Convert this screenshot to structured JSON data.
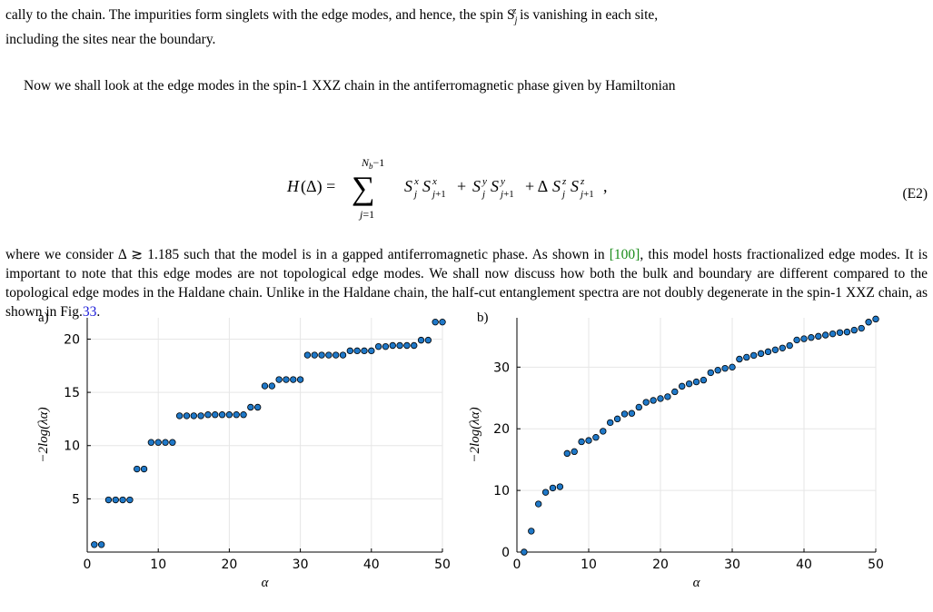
{
  "text": {
    "line1": "cally to the chain. The impurities form singlets with the edge modes, and hence, the spin S",
    "line1_sub": "j",
    "line1_sup": "z",
    "line1_tail": " is vanishing in each site,",
    "line2": "including the sites near the boundary.",
    "para2": "Now we shall look at the edge modes in the spin-1 XXZ chain in the antiferromagnetic phase given by Hamiltonian",
    "para3_a": "where we consider Δ ≳ 1.185 such that the model is in a gapped antiferromagnetic phase. As shown in ",
    "para3_ref": "[100]",
    "para3_b": ", this model hosts fractionalized edge modes. It is important to note that this edge modes are not topological edge modes. We shall now discuss how both the bulk and boundary are different compared to the topological edge modes in the Haldane chain. Unlike in the Haldane chain, the half-cut entanglement spectra are not doubly degenerate in the spin-1 XXZ chain, as shown in Fig.",
    "para3_fig": "33",
    "para3_c": ".",
    "eq_label": "(E2)"
  },
  "colors": {
    "marker_fill": "#1f78c8",
    "marker_edge": "#000000",
    "grid": "#e6e6e6",
    "ref_green": "#1a8c1a",
    "ref_blue": "#1a1ad8"
  },
  "chart_data": [
    {
      "type": "scatter",
      "panel": "a)",
      "xlabel": "α",
      "ylabel": "−2log(λα)",
      "xlim": [
        0,
        50
      ],
      "ylim": [
        0,
        22
      ],
      "xticks": [
        0,
        10,
        20,
        30,
        40,
        50
      ],
      "yticks": [
        5,
        10,
        15,
        20
      ],
      "x": [
        1,
        2,
        3,
        4,
        5,
        6,
        7,
        8,
        9,
        10,
        11,
        12,
        13,
        14,
        15,
        16,
        17,
        18,
        19,
        20,
        21,
        22,
        23,
        24,
        25,
        26,
        27,
        28,
        29,
        30,
        31,
        32,
        33,
        34,
        35,
        36,
        37,
        38,
        39,
        40,
        41,
        42,
        43,
        44,
        45,
        46,
        47,
        48,
        49,
        50
      ],
      "y": [
        0.7,
        0.7,
        4.9,
        4.9,
        4.9,
        4.9,
        7.8,
        7.8,
        10.3,
        10.3,
        10.3,
        10.3,
        12.8,
        12.8,
        12.8,
        12.8,
        12.9,
        12.9,
        12.9,
        12.9,
        12.9,
        12.9,
        13.6,
        13.6,
        15.6,
        15.6,
        16.2,
        16.2,
        16.2,
        16.2,
        18.5,
        18.5,
        18.5,
        18.5,
        18.5,
        18.5,
        18.9,
        18.9,
        18.9,
        18.9,
        19.3,
        19.3,
        19.4,
        19.4,
        19.4,
        19.4,
        19.9,
        19.9,
        21.6,
        21.6
      ]
    },
    {
      "type": "scatter",
      "panel": "b)",
      "xlabel": "α",
      "ylabel": "−2log(λα)",
      "xlim": [
        0,
        50
      ],
      "ylim": [
        0,
        38
      ],
      "xticks": [
        0,
        10,
        20,
        30,
        40,
        50
      ],
      "yticks": [
        0,
        10,
        20,
        30
      ],
      "x": [
        1,
        2,
        3,
        4,
        5,
        6,
        7,
        8,
        9,
        10,
        11,
        12,
        13,
        14,
        15,
        16,
        17,
        18,
        19,
        20,
        21,
        22,
        23,
        24,
        25,
        26,
        27,
        28,
        29,
        30,
        31,
        32,
        33,
        34,
        35,
        36,
        37,
        38,
        39,
        40,
        41,
        42,
        43,
        44,
        45,
        46,
        47,
        48,
        49,
        50
      ],
      "y": [
        0.0,
        3.4,
        7.8,
        9.7,
        10.4,
        10.6,
        16.0,
        16.3,
        17.9,
        18.1,
        18.6,
        19.6,
        21.0,
        21.6,
        22.4,
        22.5,
        23.5,
        24.3,
        24.6,
        24.9,
        25.2,
        26.0,
        26.9,
        27.3,
        27.6,
        27.9,
        29.1,
        29.5,
        29.8,
        30.0,
        31.3,
        31.6,
        31.9,
        32.2,
        32.5,
        32.8,
        33.1,
        33.5,
        34.4,
        34.6,
        34.8,
        35.0,
        35.2,
        35.4,
        35.6,
        35.7,
        36.0,
        36.3,
        37.3,
        37.8
      ]
    }
  ]
}
